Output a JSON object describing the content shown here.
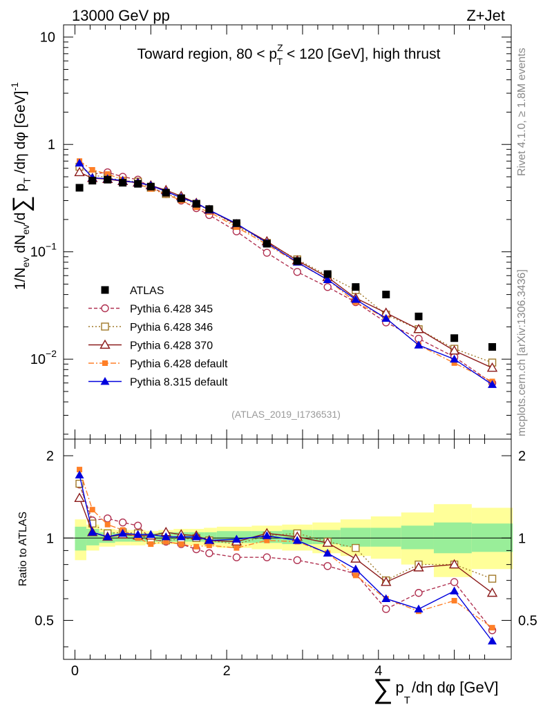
{
  "header": {
    "left": "13000 GeV pp",
    "right": "Z+Jet"
  },
  "side_labels": {
    "rivet": "Rivet 4.1.0, ≥ 1.8M events",
    "mcplots": "mcplots.cern.ch [arXiv:1306.3436]"
  },
  "chart_data": {
    "type": "line",
    "title": {
      "prefix": "Toward region, 80 < p",
      "sup": "Z",
      "sub": "T",
      "suffix": " < 120 [GeV], high thrust"
    },
    "analysis_id": "(ATLAS_2019_I1736531)",
    "ylabel_main": "1/N_ev dN_ev/d∑ p_T /dη dφ  [GeV]^-1",
    "ylabel_main_parts": {
      "a": "1/N",
      "a_sub": "ev",
      "b": " dN",
      "b_sub": "ev",
      "c": "/d",
      "sum": "∑",
      "d": " p",
      "d_sub": "T",
      "e": " /dη dφ  [GeV]",
      "e_sup": "-1"
    },
    "ylabel_ratio": "Ratio to ATLAS",
    "xlabel": {
      "sum": "∑",
      "p": "p",
      "sub": "T",
      "rest": "/dη dφ [GeV]"
    },
    "main_y_range": [
      0.0018,
      13
    ],
    "main_y_scale": "log",
    "main_y_ticks": [
      {
        "value": 10,
        "label": "10",
        "exp": ""
      },
      {
        "value": 1,
        "label": "1",
        "exp": ""
      },
      {
        "value": 0.1,
        "label": "10",
        "exp": "−1"
      },
      {
        "value": 0.01,
        "label": "10",
        "exp": "−2"
      }
    ],
    "ratio_y_range": [
      0.36,
      2.3
    ],
    "ratio_y_scale": "log",
    "ratio_y_ticks": [
      {
        "value": 2,
        "label": "2"
      },
      {
        "value": 1,
        "label": "1"
      },
      {
        "value": 0.5,
        "label": "0.5"
      }
    ],
    "x_range": [
      -0.15,
      5.75
    ],
    "x_ticks": [
      {
        "value": 0,
        "label": "0"
      },
      {
        "value": 2,
        "label": "2"
      },
      {
        "value": 4,
        "label": "4"
      }
    ],
    "x": [
      0.06,
      0.23,
      0.43,
      0.63,
      0.83,
      1.0,
      1.2,
      1.4,
      1.6,
      1.77,
      2.13,
      2.53,
      2.93,
      3.33,
      3.7,
      4.1,
      4.53,
      5.0,
      5.5
    ],
    "data": {
      "name": "ATLAS",
      "values": [
        0.395,
        0.46,
        0.47,
        0.44,
        0.43,
        0.405,
        0.355,
        0.315,
        0.28,
        0.25,
        0.185,
        0.119,
        0.082,
        0.062,
        0.047,
        0.04,
        0.025,
        0.0157,
        0.013
      ],
      "color": "#000000"
    },
    "uncertainty_bands": {
      "inner_color": "#99ee99",
      "outer_color": "#ffff99",
      "edges": [
        0.0,
        0.15,
        0.32,
        0.53,
        0.73,
        0.93,
        1.1,
        1.3,
        1.5,
        1.7,
        1.87,
        2.33,
        2.73,
        3.13,
        3.5,
        3.9,
        4.3,
        4.73,
        5.23,
        5.77
      ],
      "inner": [
        [
          0.9,
          1.1
        ],
        [
          0.94,
          1.08
        ],
        [
          0.96,
          1.05
        ],
        [
          0.97,
          1.04
        ],
        [
          0.97,
          1.04
        ],
        [
          0.97,
          1.04
        ],
        [
          0.97,
          1.05
        ],
        [
          0.97,
          1.05
        ],
        [
          0.97,
          1.05
        ],
        [
          0.96,
          1.05
        ],
        [
          0.96,
          1.06
        ],
        [
          0.96,
          1.06
        ],
        [
          0.95,
          1.07
        ],
        [
          0.95,
          1.07
        ],
        [
          0.93,
          1.09
        ],
        [
          0.93,
          1.09
        ],
        [
          0.91,
          1.11
        ],
        [
          0.88,
          1.14
        ],
        [
          0.89,
          1.13
        ]
      ],
      "outer": [
        [
          0.83,
          1.17
        ],
        [
          0.9,
          1.12
        ],
        [
          0.93,
          1.08
        ],
        [
          0.94,
          1.07
        ],
        [
          0.94,
          1.07
        ],
        [
          0.95,
          1.06
        ],
        [
          0.95,
          1.07
        ],
        [
          0.95,
          1.08
        ],
        [
          0.94,
          1.08
        ],
        [
          0.93,
          1.09
        ],
        [
          0.92,
          1.1
        ],
        [
          0.91,
          1.11
        ],
        [
          0.9,
          1.12
        ],
        [
          0.88,
          1.14
        ],
        [
          0.86,
          1.17
        ],
        [
          0.84,
          1.2
        ],
        [
          0.8,
          1.24
        ],
        [
          0.72,
          1.33
        ],
        [
          0.77,
          1.29
        ]
      ]
    },
    "series": [
      {
        "name": "Pythia 6.428 345",
        "color": "#b03050",
        "dash": "5,3",
        "marker": "circle-open",
        "values": [
          0.62,
          0.53,
          0.55,
          0.5,
          0.47,
          0.4,
          0.345,
          0.3,
          0.255,
          0.22,
          0.155,
          0.098,
          0.065,
          0.047,
          0.034,
          0.022,
          0.0155,
          0.0105,
          0.006
        ],
        "ratio": [
          1.57,
          1.16,
          1.18,
          1.14,
          1.11,
          0.99,
          0.97,
          0.95,
          0.91,
          0.88,
          0.85,
          0.85,
          0.83,
          0.79,
          0.74,
          0.55,
          0.63,
          0.69,
          0.46
        ]
      },
      {
        "name": "Pythia 6.428 346",
        "color": "#a07828",
        "dash": "2,3",
        "marker": "square-open",
        "values": [
          0.62,
          0.52,
          0.49,
          0.46,
          0.45,
          0.395,
          0.345,
          0.315,
          0.28,
          0.245,
          0.175,
          0.121,
          0.085,
          0.06,
          0.044,
          0.026,
          0.019,
          0.0125,
          0.0093
        ],
        "ratio": [
          1.58,
          1.13,
          1.04,
          1.05,
          1.04,
          0.98,
          0.98,
          0.99,
          1.0,
          0.98,
          0.95,
          1.02,
          1.04,
          0.97,
          0.92,
          0.7,
          0.8,
          0.8,
          0.71
        ]
      },
      {
        "name": "Pythia 6.428 370",
        "color": "#8b1a1a",
        "dash": "",
        "marker": "triangle-open",
        "values": [
          0.55,
          0.485,
          0.475,
          0.455,
          0.44,
          0.415,
          0.375,
          0.33,
          0.285,
          0.245,
          0.18,
          0.125,
          0.083,
          0.058,
          0.037,
          0.027,
          0.019,
          0.012,
          0.0083
        ],
        "ratio": [
          1.4,
          1.05,
          1.01,
          1.03,
          1.02,
          1.02,
          1.05,
          1.03,
          1.02,
          0.98,
          0.97,
          1.04,
          1.01,
          0.96,
          0.84,
          0.69,
          0.78,
          0.8,
          0.63
        ]
      },
      {
        "name": "Pythia 6.428 default",
        "color": "#ff7f27",
        "dash": "8,3,2,3",
        "marker": "square-filled",
        "values": [
          0.7,
          0.58,
          0.53,
          0.47,
          0.43,
          0.385,
          0.345,
          0.3,
          0.26,
          0.235,
          0.17,
          0.117,
          0.079,
          0.055,
          0.034,
          0.024,
          0.0135,
          0.0092,
          0.0062
        ],
        "ratio": [
          1.78,
          1.27,
          1.12,
          1.07,
          1.0,
          0.95,
          0.97,
          0.95,
          0.93,
          0.94,
          0.92,
          0.98,
          0.97,
          0.88,
          0.73,
          0.6,
          0.54,
          0.59,
          0.47
        ]
      },
      {
        "name": "Pythia 8.315 default",
        "color": "#0000dd",
        "dash": "",
        "marker": "triangle-filled",
        "values": [
          0.67,
          0.49,
          0.48,
          0.46,
          0.44,
          0.415,
          0.365,
          0.32,
          0.285,
          0.245,
          0.183,
          0.121,
          0.08,
          0.055,
          0.036,
          0.024,
          0.0135,
          0.01,
          0.0058
        ],
        "ratio": [
          1.7,
          1.05,
          1.01,
          1.04,
          1.03,
          1.03,
          1.01,
          1.01,
          1.01,
          0.98,
          0.99,
          1.02,
          0.98,
          0.88,
          0.77,
          0.6,
          0.55,
          0.64,
          0.42
        ]
      }
    ],
    "legend": {
      "placement": "center-left",
      "entries": [
        "ATLAS",
        "Pythia 6.428 345",
        "Pythia 6.428 346",
        "Pythia 6.428 370",
        "Pythia 6.428 default",
        "Pythia 8.315 default"
      ]
    }
  }
}
